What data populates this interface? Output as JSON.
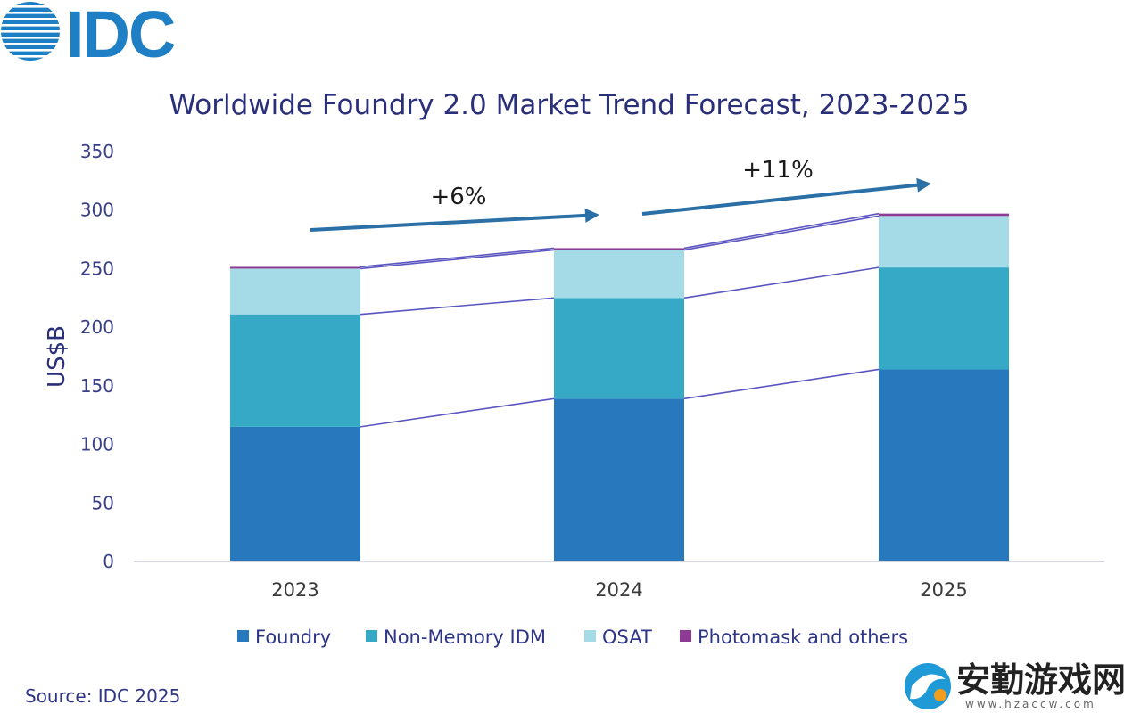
{
  "brand": {
    "logo_text": "IDC",
    "color": "#1f7fc4"
  },
  "source": "Source: IDC 2025",
  "watermark": {
    "name": "安勤游戏网",
    "url": "www.hzaccw.com"
  },
  "chart_data": {
    "type": "bar",
    "stacked": true,
    "title": "Worldwide Foundry 2.0 Market Trend Forecast, 2023-2025",
    "xlabel": "",
    "ylabel": "US$B",
    "ylim": [
      0,
      350
    ],
    "yticks": [
      0,
      50,
      100,
      150,
      200,
      250,
      300,
      350
    ],
    "categories": [
      "2023",
      "2024",
      "2025"
    ],
    "series": [
      {
        "name": "Foundry",
        "color": "#2878be",
        "values": [
          115,
          139,
          164
        ]
      },
      {
        "name": "Non-Memory IDM",
        "color": "#35a9c6",
        "values": [
          96,
          86,
          87
        ]
      },
      {
        "name": "OSAT",
        "color": "#a4dbe6",
        "values": [
          39,
          41,
          44
        ]
      },
      {
        "name": "Photomask and others",
        "color": "#8e3b96",
        "values": [
          1.5,
          1.5,
          2
        ]
      }
    ],
    "annotations": [
      {
        "text": "+6%",
        "from": "2023",
        "to": "2024"
      },
      {
        "text": "+11%",
        "from": "2024",
        "to": "2025"
      }
    ],
    "legend": "bottom",
    "grid": false
  }
}
